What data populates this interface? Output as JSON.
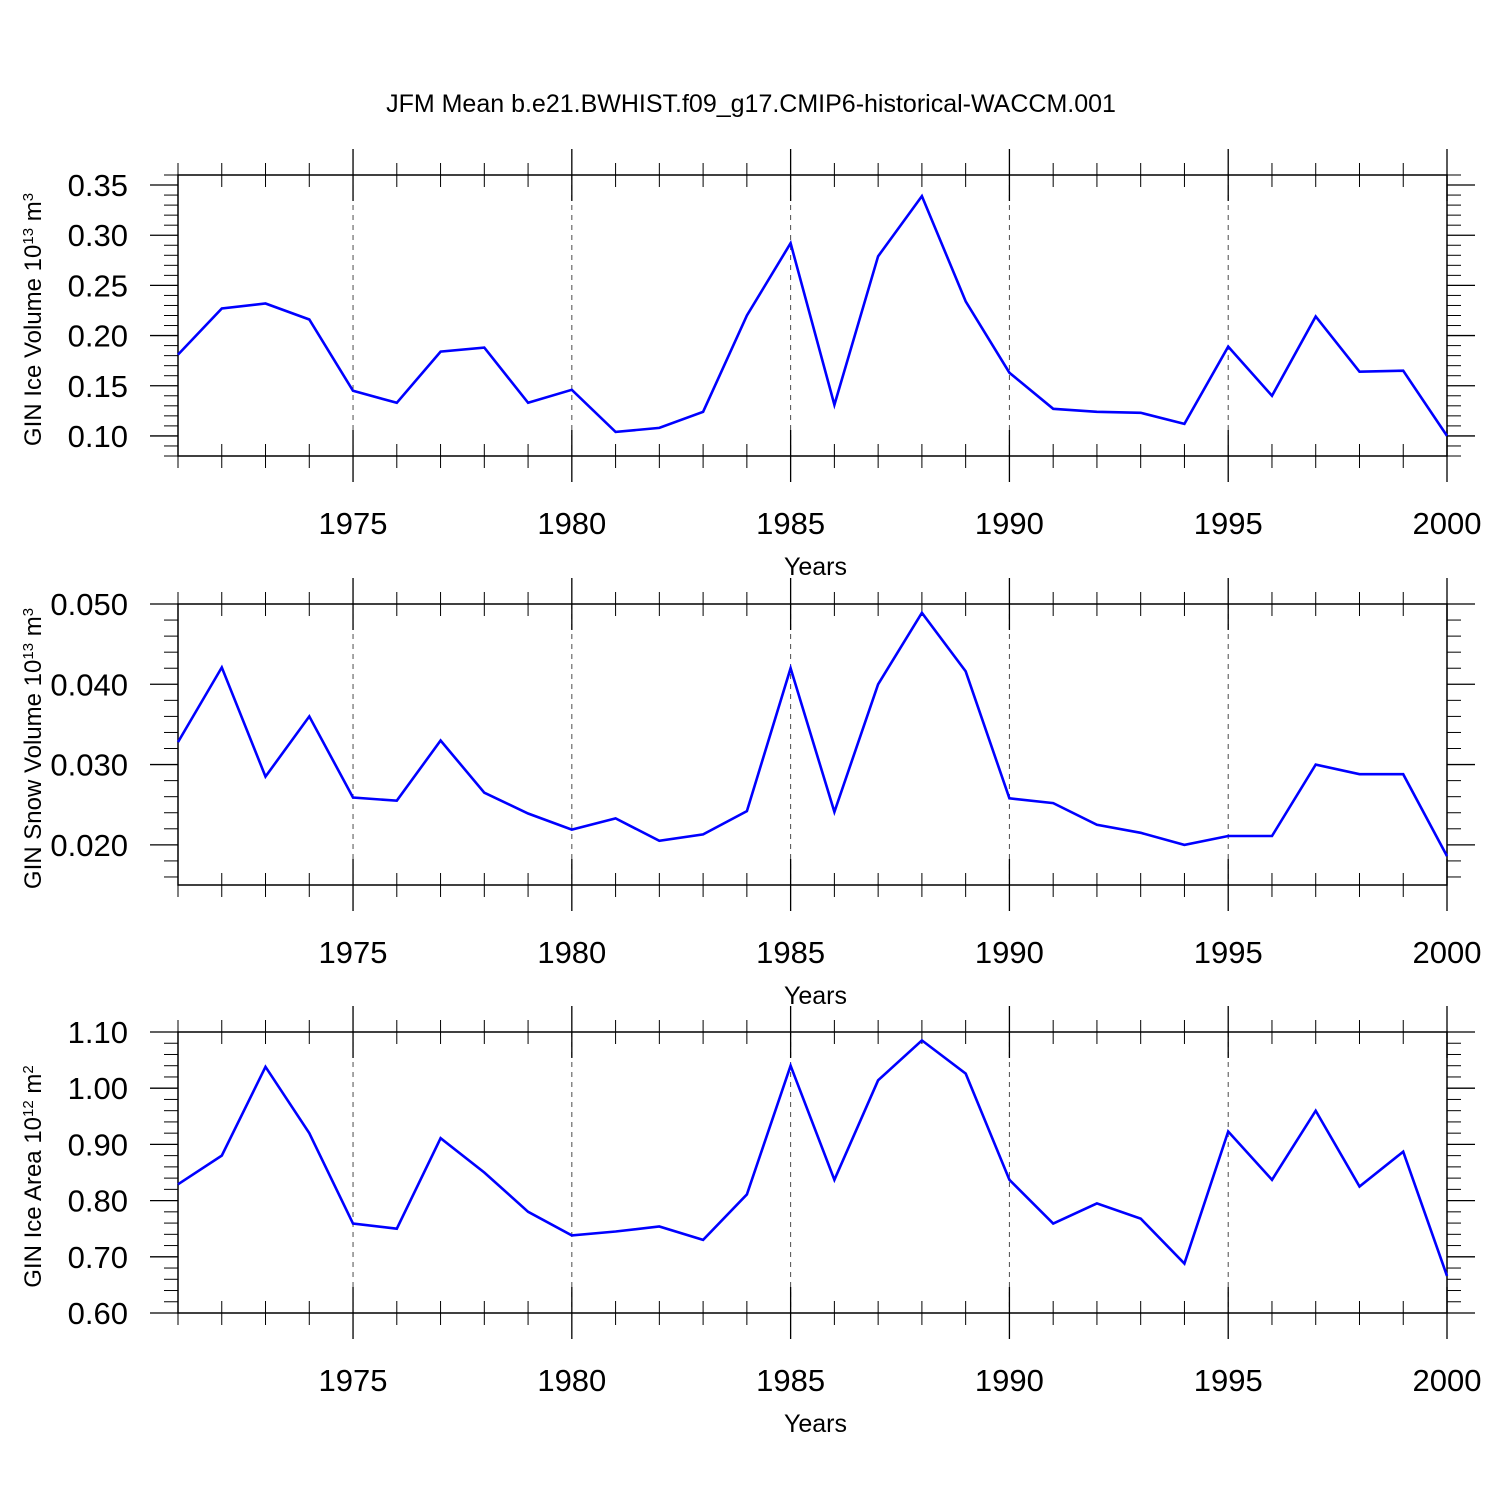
{
  "title": "JFM Mean b.e21.BWHIST.f09_g17.CMIP6-historical-WACCM.001",
  "chart_data": [
    {
      "type": "line",
      "title": "JFM Mean b.e21.BWHIST.f09_g17.CMIP6-historical-WACCM.001",
      "xlabel": "Years",
      "ylabel_parts": {
        "pre": "GIN Ice Volume 10",
        "exp": "13",
        "mid": " m",
        "unit_exp": "3"
      },
      "xlim": [
        1971,
        2000
      ],
      "ylim": [
        0.08,
        0.36
      ],
      "xticks": [
        1975,
        1980,
        1985,
        1990,
        1995,
        2000
      ],
      "yticks": [
        0.1,
        0.15,
        0.2,
        0.25,
        0.3,
        0.35
      ],
      "ytick_labels": [
        "0.10",
        "0.15",
        "0.20",
        "0.25",
        "0.30",
        "0.35"
      ],
      "series": [
        {
          "name": "GIN Ice Volume",
          "color": "#0000ff",
          "x": [
            1971,
            1972,
            1973,
            1974,
            1975,
            1976,
            1977,
            1978,
            1979,
            1980,
            1981,
            1982,
            1983,
            1984,
            1985,
            1986,
            1987,
            1988,
            1989,
            1990,
            1991,
            1992,
            1993,
            1994,
            1995,
            1996,
            1997,
            1998,
            1999,
            2000
          ],
          "values": [
            0.181,
            0.227,
            0.232,
            0.216,
            0.145,
            0.133,
            0.184,
            0.188,
            0.133,
            0.146,
            0.104,
            0.108,
            0.124,
            0.22,
            0.292,
            0.131,
            0.279,
            0.339,
            0.234,
            0.163,
            0.127,
            0.124,
            0.123,
            0.112,
            0.189,
            0.14,
            0.219,
            0.164,
            0.165,
            0.1
          ]
        }
      ]
    },
    {
      "type": "line",
      "xlabel": "Years",
      "ylabel_parts": {
        "pre": "GIN Snow Volume 10",
        "exp": "13",
        "mid": " m",
        "unit_exp": "3"
      },
      "xlim": [
        1971,
        2000
      ],
      "ylim": [
        0.015,
        0.05
      ],
      "xticks": [
        1975,
        1980,
        1985,
        1990,
        1995,
        2000
      ],
      "yticks": [
        0.02,
        0.03,
        0.04,
        0.05
      ],
      "ytick_labels": [
        "0.020",
        "0.030",
        "0.040",
        "0.050"
      ],
      "series": [
        {
          "name": "GIN Snow Volume",
          "color": "#0000ff",
          "x": [
            1971,
            1972,
            1973,
            1974,
            1975,
            1976,
            1977,
            1978,
            1979,
            1980,
            1981,
            1982,
            1983,
            1984,
            1985,
            1986,
            1987,
            1988,
            1989,
            1990,
            1991,
            1992,
            1993,
            1994,
            1995,
            1996,
            1997,
            1998,
            1999,
            2000
          ],
          "values": [
            0.0328,
            0.0421,
            0.0285,
            0.036,
            0.0259,
            0.0255,
            0.033,
            0.0265,
            0.0239,
            0.0219,
            0.0233,
            0.0205,
            0.0213,
            0.0242,
            0.042,
            0.0241,
            0.04,
            0.0489,
            0.0416,
            0.0258,
            0.0252,
            0.0225,
            0.0215,
            0.02,
            0.0211,
            0.0211,
            0.03,
            0.0288,
            0.0288,
            0.0186
          ]
        }
      ]
    },
    {
      "type": "line",
      "xlabel": "Years",
      "ylabel_parts": {
        "pre": "GIN Ice Area 10",
        "exp": "12",
        "mid": " m",
        "unit_exp": "2"
      },
      "xlim": [
        1971,
        2000
      ],
      "ylim": [
        0.6,
        1.1
      ],
      "xticks": [
        1975,
        1980,
        1985,
        1990,
        1995,
        2000
      ],
      "yticks": [
        0.6,
        0.7,
        0.8,
        0.9,
        1.0,
        1.1
      ],
      "ytick_labels": [
        "0.60",
        "0.70",
        "0.80",
        "0.90",
        "1.00",
        "1.10"
      ],
      "series": [
        {
          "name": "GIN Ice Area",
          "color": "#0000ff",
          "x": [
            1971,
            1972,
            1973,
            1974,
            1975,
            1976,
            1977,
            1978,
            1979,
            1980,
            1981,
            1982,
            1983,
            1984,
            1985,
            1986,
            1987,
            1988,
            1989,
            1990,
            1991,
            1992,
            1993,
            1994,
            1995,
            1996,
            1997,
            1998,
            1999,
            2000
          ],
          "values": [
            0.829,
            0.88,
            1.038,
            0.92,
            0.759,
            0.75,
            0.911,
            0.85,
            0.78,
            0.738,
            0.745,
            0.754,
            0.73,
            0.811,
            1.04,
            0.837,
            1.014,
            1.085,
            1.026,
            0.837,
            0.759,
            0.795,
            0.768,
            0.688,
            0.923,
            0.837,
            0.96,
            0.825,
            0.887,
            0.666
          ]
        }
      ]
    }
  ]
}
